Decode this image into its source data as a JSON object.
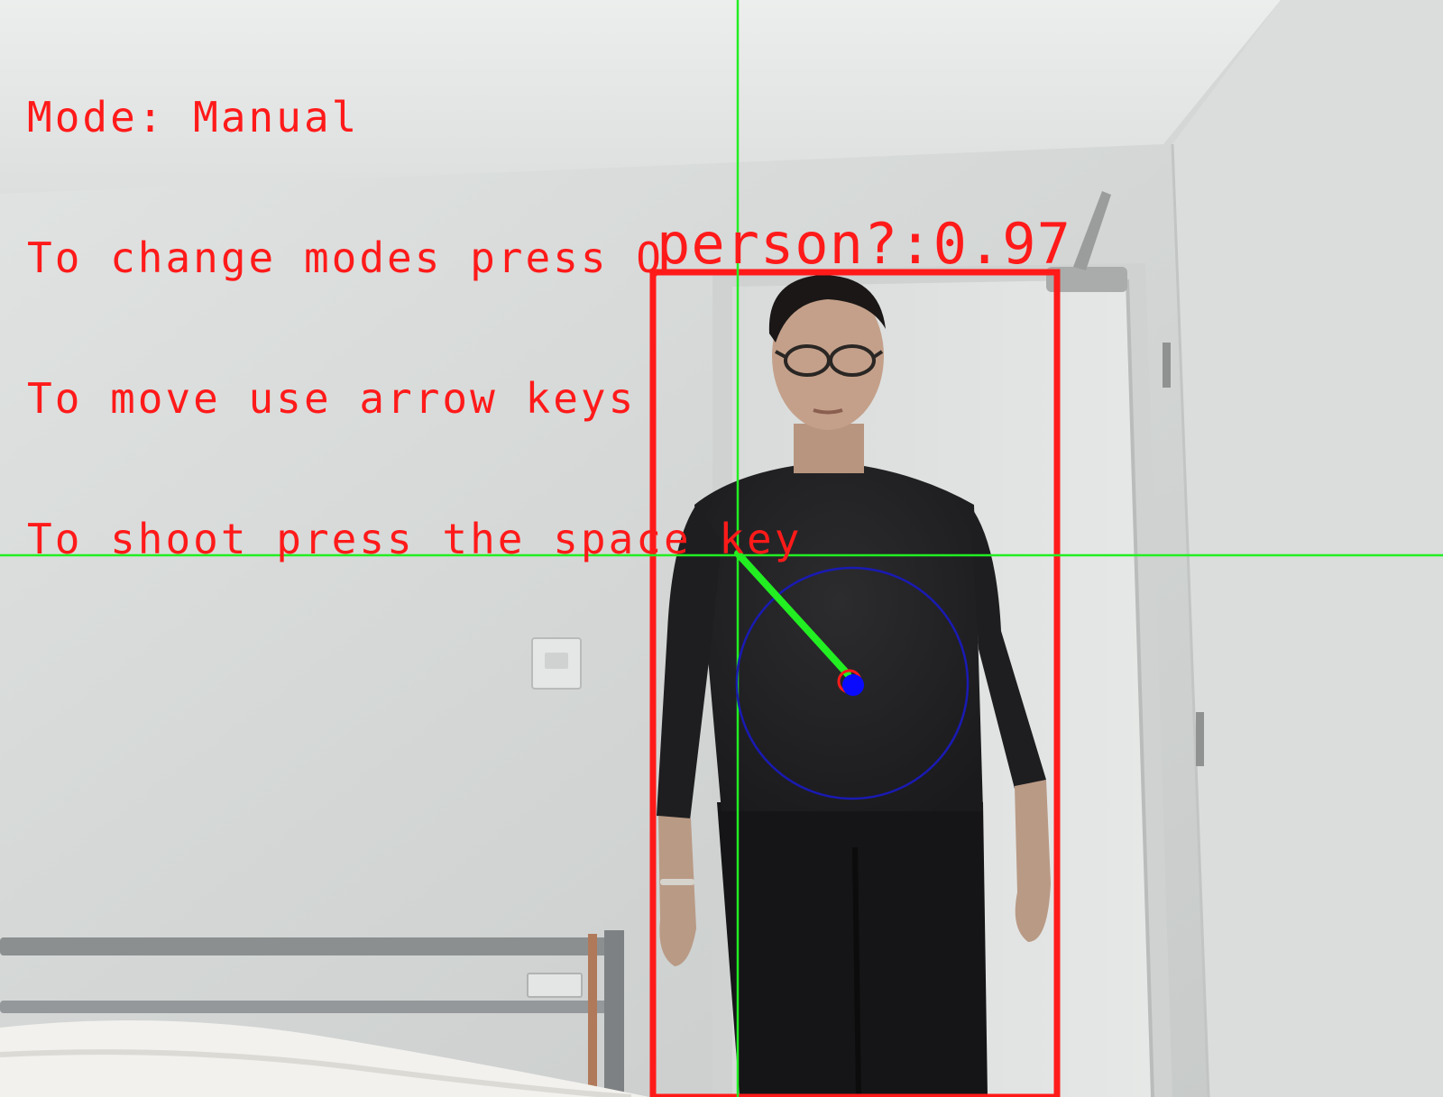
{
  "hud": {
    "mode_line": "Mode: Manual",
    "instructions": [
      "To change modes press Q",
      "To move use arrow keys",
      "To shoot press the space key"
    ]
  },
  "detection": {
    "label": "person?:0.97"
  },
  "colors": {
    "overlay_text": "#ff1a1a",
    "bounding_box": "#ff1a1a",
    "crosshair": "#22ee22",
    "target_circle": "#1a1ab4",
    "target_dot": "#0a0aff"
  }
}
